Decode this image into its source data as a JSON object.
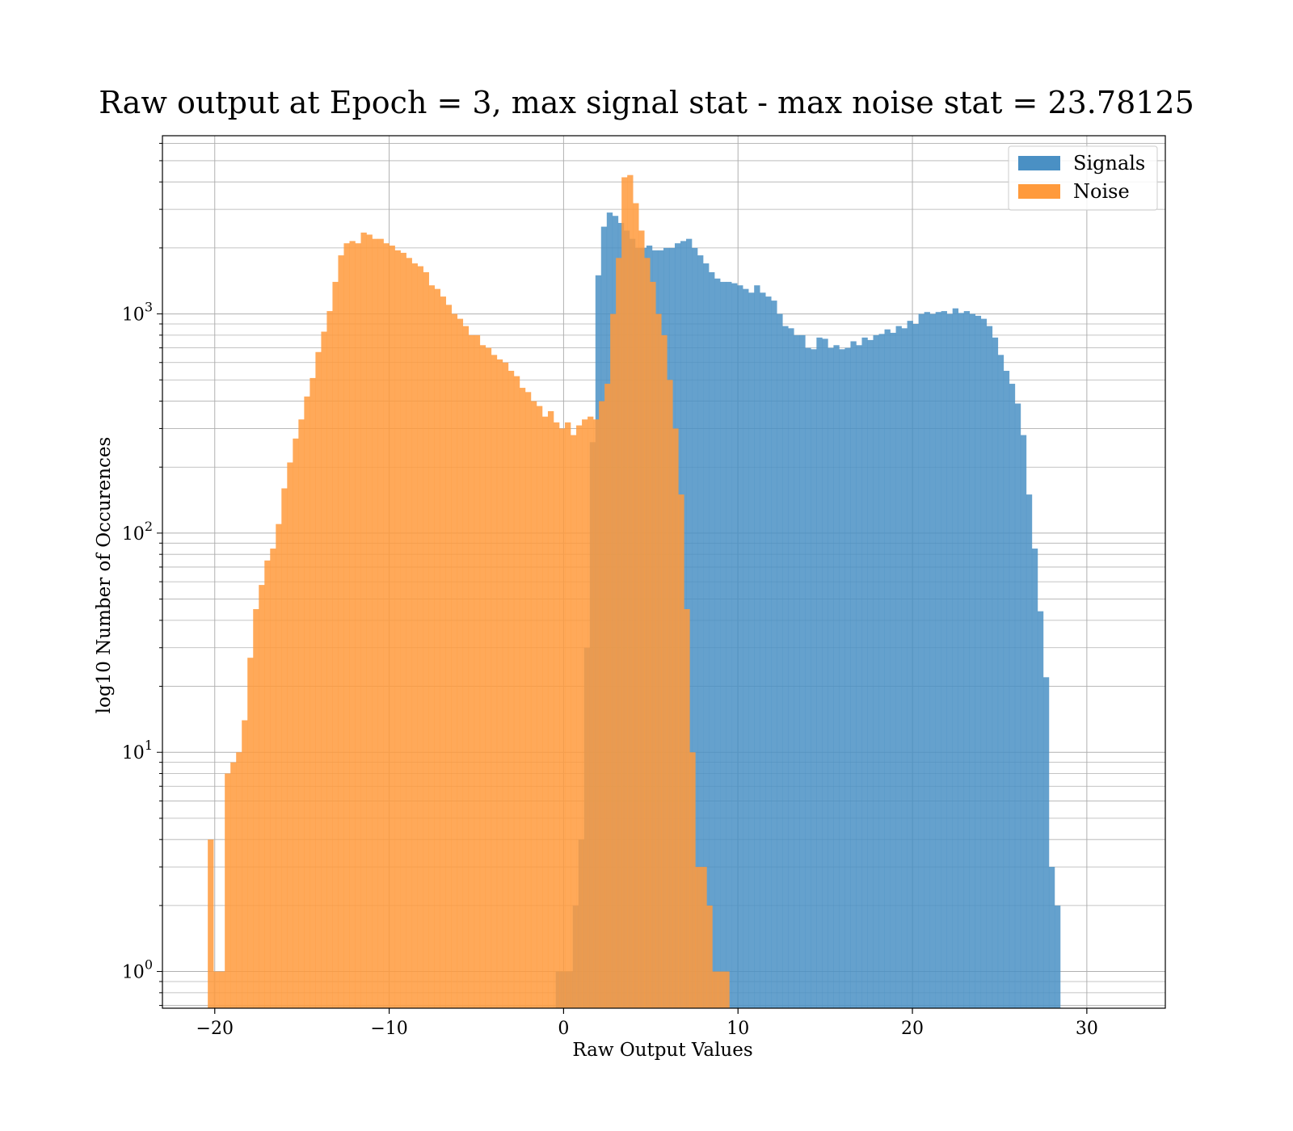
{
  "chart_data": {
    "type": "bar",
    "title": "Raw output at Epoch = 3, max signal stat - max noise stat = 23.78125",
    "xlabel": "Raw Output Values",
    "ylabel": "log10 Number of Occurences",
    "xlim": [
      -23,
      34.5
    ],
    "ylim": [
      0.68,
      6500
    ],
    "y_scale": "log",
    "grid": true,
    "legend_position": "top-right",
    "x_ticks": [
      -20,
      -10,
      0,
      10,
      20,
      30
    ],
    "x_tick_labels": [
      "−20",
      "−10",
      "0",
      "10",
      "20",
      "30"
    ],
    "y_ticks": [
      1,
      10,
      100,
      1000
    ],
    "y_tick_labels": [
      {
        "base": "10",
        "exp": "0"
      },
      {
        "base": "10",
        "exp": "1"
      },
      {
        "base": "10",
        "exp": "2"
      },
      {
        "base": "10",
        "exp": "3"
      }
    ],
    "series": [
      {
        "name": "Signals",
        "color": "#4a90c4",
        "bin_start": -0.45,
        "bin_width": 0.325,
        "values": [
          1,
          1,
          1,
          2,
          4,
          30,
          260,
          1500,
          2500,
          2900,
          2800,
          2600,
          2400,
          2200,
          2000,
          2000,
          2050,
          1950,
          1950,
          2000,
          2000,
          2100,
          2150,
          2200,
          2000,
          1850,
          1700,
          1550,
          1450,
          1400,
          1400,
          1380,
          1350,
          1300,
          1250,
          1350,
          1250,
          1200,
          1150,
          1000,
          880,
          860,
          800,
          800,
          700,
          690,
          780,
          770,
          700,
          720,
          690,
          700,
          750,
          720,
          780,
          760,
          800,
          810,
          850,
          820,
          880,
          860,
          930,
          900,
          1000,
          1020,
          1000,
          1020,
          1030,
          1000,
          1060,
          1010,
          1030,
          1000,
          980,
          950,
          880,
          780,
          650,
          550,
          480,
          390,
          280,
          150,
          85,
          44,
          22,
          3,
          2
        ]
      },
      {
        "name": "Noise",
        "color": "#ff9a3c",
        "bin_start": -20.4,
        "bin_width": 0.325,
        "values": [
          4,
          1,
          1,
          8,
          9,
          10,
          14,
          27,
          45,
          58,
          75,
          85,
          110,
          160,
          210,
          270,
          330,
          420,
          510,
          670,
          830,
          1030,
          1400,
          1850,
          2100,
          2150,
          2100,
          2350,
          2300,
          2200,
          2200,
          2100,
          2050,
          1950,
          1900,
          1800,
          1700,
          1650,
          1550,
          1350,
          1300,
          1200,
          1100,
          1000,
          950,
          880,
          800,
          800,
          720,
          700,
          650,
          620,
          600,
          550,
          520,
          460,
          440,
          400,
          380,
          340,
          360,
          320,
          300,
          320,
          280,
          310,
          330,
          340,
          330,
          400,
          480,
          1000,
          1800,
          4200,
          4300,
          3200,
          2400,
          1800,
          1400,
          1000,
          800,
          500,
          300,
          150,
          45,
          10,
          3,
          3,
          2,
          1,
          1,
          1
        ]
      }
    ]
  }
}
